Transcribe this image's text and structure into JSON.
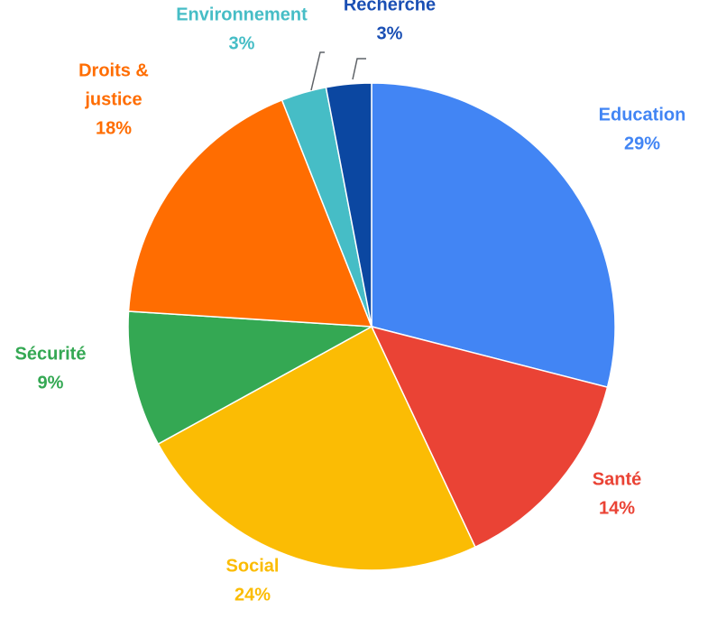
{
  "chart_data": {
    "type": "pie",
    "title": "",
    "start_angle_deg": 0,
    "direction": "clockwise",
    "legend": "none",
    "slices": [
      {
        "label": [
          "Education"
        ],
        "value": 29,
        "value_text": "29%",
        "color": "#4285F4"
      },
      {
        "label": [
          "Santé"
        ],
        "value": 14,
        "value_text": "14%",
        "color": "#EA4335"
      },
      {
        "label": [
          "Social"
        ],
        "value": 24,
        "value_text": "24%",
        "color": "#FBBC04"
      },
      {
        "label": [
          "Sécurité"
        ],
        "value": 9,
        "value_text": "9%",
        "color": "#34A853"
      },
      {
        "label": [
          "Droits &",
          "justice"
        ],
        "value": 18,
        "value_text": "18%",
        "color": "#FF6D01"
      },
      {
        "label": [
          "Environnement"
        ],
        "value": 3,
        "value_text": "3%",
        "color": "#46BDC6"
      },
      {
        "label": [
          "Recherche"
        ],
        "value": 3,
        "value_text": "3%",
        "color": "#0B47A1",
        "label_color": "#1A4FB4"
      }
    ]
  }
}
